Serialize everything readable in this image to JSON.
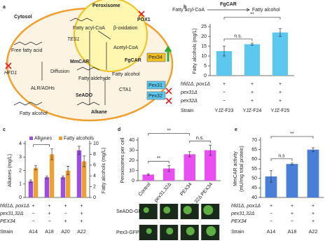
{
  "diagram": {
    "labels": [
      "a",
      "Cytosol",
      "Peroxisome",
      "POX1",
      "Fatty acyl-CoA",
      "TES1",
      "β-oxidation",
      "Acetyl-CoA",
      "Free fatty acid",
      "HFD1",
      "MmCAR",
      "FgCAR",
      "Diffusion",
      "Fatty aldehyde",
      "Fatty alcohol",
      "ALR/ADHs",
      "SeADO",
      "CTA1",
      "Fatty alcohol",
      "Alkane",
      "Pex34",
      "Pex31",
      "Pex32"
    ]
  },
  "chart_data": [
    {
      "type": "bar",
      "label": "b",
      "header_left": "Fatty acyl-CoA",
      "header_enzyme": "FgCAR",
      "header_right": "Fatty alcohol",
      "ylabel": "Fatty alcohols (mg/L)",
      "categories": [
        "YJZ-F23",
        "YJZ-F24",
        "YJZ-F25"
      ],
      "values": [
        12.5,
        16,
        22
      ],
      "errors": [
        2.5,
        0.5,
        2
      ],
      "color": "#5cc8f0",
      "ylim": [
        0,
        25
      ],
      "yticks": [
        0,
        5,
        10,
        15,
        20,
        25
      ],
      "annotations": [
        {
          "text": "n.s.",
          "between": [
            "YJZ-F23",
            "YJZ-F24"
          ]
        },
        {
          "text": "**",
          "between": [
            "YJZ-F23",
            "YJZ-F25"
          ]
        }
      ],
      "genotype": {
        "rows": [
          {
            "label": "hfd1Δ, pox1Δ",
            "cells": [
              "+",
              "+",
              "+"
            ]
          },
          {
            "label": "pex31Δ",
            "cells": [
              "−",
              "+",
              "+"
            ]
          },
          {
            "label": "pex32Δ",
            "cells": [
              "−",
              "+",
              "+"
            ]
          }
        ],
        "strain": "Strain"
      }
    },
    {
      "type": "bar",
      "label": "c",
      "ylabel": "Alkanes (mg/L)",
      "y2label": "Fatty alcohols (mg/L)",
      "categories": [
        "A14",
        "A18",
        "A20",
        "A22"
      ],
      "series": [
        {
          "name": "Alkanes",
          "color": "#9b4fe0",
          "values": [
            1.2,
            1.5,
            1.5,
            3.5
          ],
          "errors": [
            0.1,
            0.1,
            0.1,
            0.3
          ]
        },
        {
          "name": "Fatty alcohols",
          "color": "#f0a030",
          "axis": "y2",
          "values": [
            5.5,
            8,
            5,
            6.7
          ],
          "errors": [
            0.4,
            1,
            0.8,
            1
          ]
        }
      ],
      "ylim": [
        0,
        4
      ],
      "yticks": [
        0,
        1,
        2,
        3,
        4
      ],
      "y2lim": [
        0,
        10
      ],
      "y2ticks": [
        0,
        2,
        4,
        6,
        8,
        10
      ],
      "annotations": [
        {
          "text": "*",
          "between": [
            "A14",
            "A18"
          ]
        }
      ],
      "genotype": {
        "rows": [
          {
            "label": "hfd1Δ, pox1Δ",
            "cells": [
              "+",
              "+",
              "+",
              "+"
            ]
          },
          {
            "label": "pex31,32Δ",
            "cells": [
              "−",
              "+",
              "−",
              "+"
            ]
          },
          {
            "label": "PEX34",
            "cells": [
              "−",
              "−",
              "+",
              "+"
            ]
          }
        ],
        "strain": "Strain"
      }
    },
    {
      "type": "bar",
      "label": "d",
      "ylabel": "Peroxisomes per cell",
      "categories": [
        "Control",
        "pex31,32Δ",
        "PEX34",
        "pex31,32Δ PEX34"
      ],
      "values": [
        6,
        12,
        26,
        30
      ],
      "errors": [
        0.8,
        3,
        2.5,
        5
      ],
      "color": "#e84ef0",
      "ylim": [
        0,
        40
      ],
      "yticks": [
        0,
        10,
        20,
        30,
        40
      ],
      "annotations": [
        {
          "text": "**",
          "between": [
            "Control",
            "pex31,32Δ"
          ]
        },
        {
          "text": "n.s.",
          "between": [
            "PEX34",
            "pex31,32Δ PEX34"
          ]
        },
        {
          "text": "**",
          "between": [
            "Control",
            "PEX34"
          ]
        }
      ],
      "images": [
        "SeADO-GFP",
        "Pex3-GFP"
      ]
    },
    {
      "type": "bar",
      "label": "e",
      "ylabel": [
        "MmCAR activity",
        "(mU/mg total protein)"
      ],
      "categories": [
        "A14",
        "A18",
        "A22"
      ],
      "values": [
        51,
        57.5,
        65
      ],
      "errors": [
        3,
        0.5,
        1
      ],
      "color": "#4a7fd8",
      "ylim": [
        40,
        70
      ],
      "yticks": [
        40,
        45,
        50,
        55,
        60,
        65,
        70
      ],
      "annotations": [
        {
          "text": "n.s",
          "between": [
            "A14",
            "A18"
          ]
        },
        {
          "text": "**",
          "between": [
            "A14",
            "A22"
          ]
        }
      ],
      "genotype": {
        "rows": [
          {
            "label": "hfd1Δ, pox1Δ",
            "cells": [
              "+",
              "+",
              "+"
            ]
          },
          {
            "label": "pex31,32Δ",
            "cells": [
              "−",
              "+",
              "+"
            ]
          },
          {
            "label": "PEX34",
            "cells": [
              "−",
              "−",
              "+"
            ]
          }
        ],
        "strain": "Strain"
      }
    }
  ]
}
